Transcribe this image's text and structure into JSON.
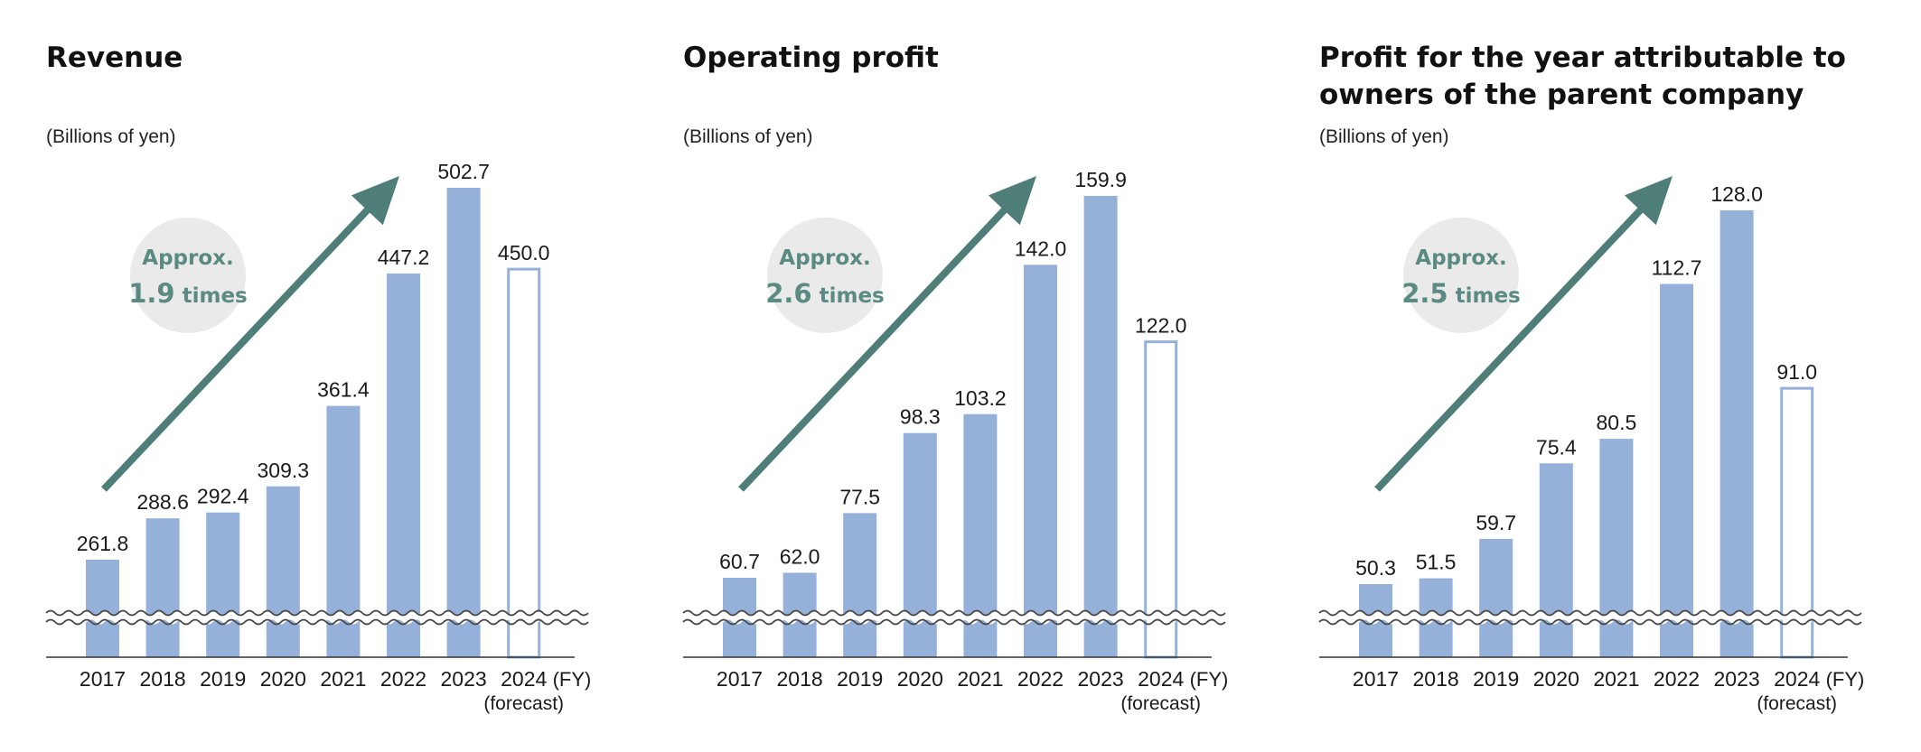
{
  "colors": {
    "bar": "#96b1d9",
    "forecast_outline": "#96b1d9",
    "arrow": "#4f7e78",
    "badge_bg": "#eaeaea",
    "badge_text": "#5b8a82",
    "axis": "#333333"
  },
  "fy_label": "(FY)",
  "forecast_label": "(forecast)",
  "chart_data": [
    {
      "type": "bar",
      "title": "Revenue",
      "ylabel": "(Billions of yen)",
      "categories": [
        "2017",
        "2018",
        "2019",
        "2020",
        "2021",
        "2022",
        "2023",
        "2024"
      ],
      "values": [
        261.8,
        288.6,
        292.4,
        309.3,
        361.4,
        447.2,
        502.7,
        450.0
      ],
      "labels": [
        "261.8",
        "288.6",
        "292.4",
        "309.3",
        "361.4",
        "447.2",
        "502.7",
        "450.0"
      ],
      "forecast_index": 7,
      "axis_break": true,
      "badge": {
        "line1": "Approx.",
        "value": "1.9",
        "unit": " times"
      }
    },
    {
      "type": "bar",
      "title": "Operating profit",
      "ylabel": "(Billions of yen)",
      "categories": [
        "2017",
        "2018",
        "2019",
        "2020",
        "2021",
        "2022",
        "2023",
        "2024"
      ],
      "values": [
        60.7,
        62.0,
        77.5,
        98.3,
        103.2,
        142.0,
        159.9,
        122.0
      ],
      "labels": [
        "60.7",
        "62.0",
        "77.5",
        "98.3",
        "103.2",
        "142.0",
        "159.9",
        "122.0"
      ],
      "forecast_index": 7,
      "axis_break": true,
      "badge": {
        "line1": "Approx.",
        "value": "2.6",
        "unit": " times"
      }
    },
    {
      "type": "bar",
      "title": "Profit for the year attributable to owners of the parent company",
      "ylabel": "(Billions of yen)",
      "categories": [
        "2017",
        "2018",
        "2019",
        "2020",
        "2021",
        "2022",
        "2023",
        "2024"
      ],
      "values": [
        50.3,
        51.5,
        59.7,
        75.4,
        80.5,
        112.7,
        128.0,
        91.0
      ],
      "labels": [
        "50.3",
        "51.5",
        "59.7",
        "75.4",
        "80.5",
        "112.7",
        "128.0",
        "91.0"
      ],
      "forecast_index": 7,
      "axis_break": true,
      "badge": {
        "line1": "Approx.",
        "value": "2.5",
        "unit": " times"
      }
    }
  ]
}
